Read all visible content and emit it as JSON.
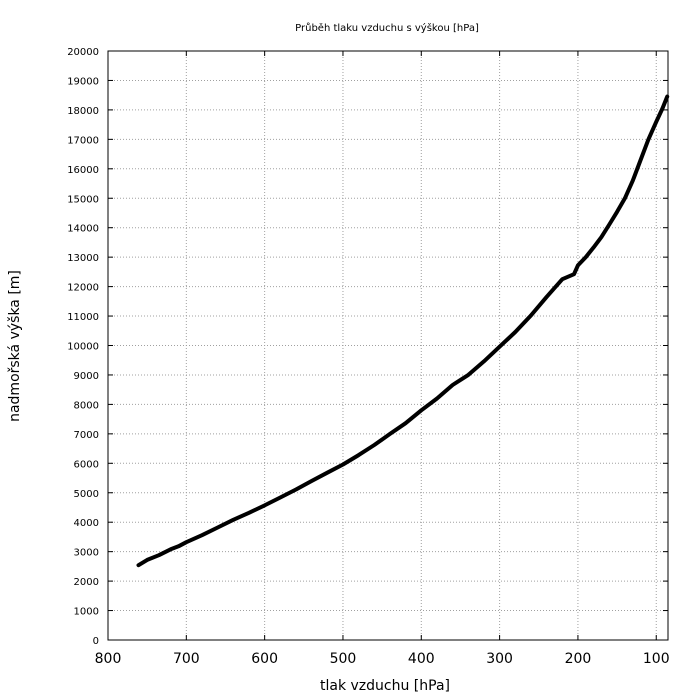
{
  "chart_data": {
    "type": "line",
    "title": "Průběh tlaku vzduchu s výškou [hPa]",
    "xlabel": "tlak vzduchu [hPa]",
    "ylabel": "nadmořská výška [m]",
    "xlim": [
      800,
      85
    ],
    "ylim": [
      0,
      20000
    ],
    "x_reversed": true,
    "grid": true,
    "x_ticks": [
      800,
      700,
      600,
      500,
      400,
      300,
      200,
      100
    ],
    "y_ticks": [
      0,
      1000,
      2000,
      3000,
      4000,
      5000,
      6000,
      7000,
      8000,
      9000,
      10000,
      11000,
      12000,
      13000,
      14000,
      15000,
      16000,
      17000,
      18000,
      19000,
      20000
    ],
    "line_color": "#000000",
    "series": [
      {
        "x": [
          761,
          750,
          735,
          720,
          710,
          700,
          680,
          660,
          640,
          620,
          600,
          580,
          560,
          540,
          520,
          500,
          480,
          460,
          440,
          420,
          400,
          380,
          360,
          340,
          320,
          300,
          280,
          260,
          240,
          220,
          205,
          200,
          190,
          180,
          170,
          160,
          150,
          140,
          130,
          120,
          110,
          100,
          92,
          86
        ],
        "y": [
          2540,
          2720,
          2880,
          3080,
          3180,
          3320,
          3560,
          3820,
          4080,
          4320,
          4570,
          4840,
          5110,
          5400,
          5680,
          5960,
          6280,
          6620,
          7000,
          7360,
          7800,
          8200,
          8660,
          9000,
          9460,
          9960,
          10460,
          11020,
          11650,
          12250,
          12420,
          12720,
          13000,
          13330,
          13680,
          14110,
          14540,
          15000,
          15600,
          16300,
          17000,
          17600,
          18050,
          18450
        ]
      }
    ]
  }
}
